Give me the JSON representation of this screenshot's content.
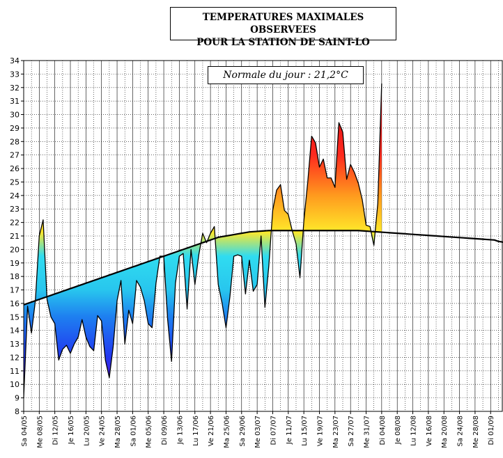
{
  "chart_data": {
    "type": "area",
    "title_line1": "TEMPERATURES MAXIMALES OBSERVEES",
    "title_line2": "POUR LA STATION DE SAINT-LO",
    "annotation": "Normale du jour : 21,2°C",
    "ylim": [
      8,
      34
    ],
    "y_ticks": [
      8,
      9,
      10,
      11,
      12,
      13,
      14,
      15,
      16,
      17,
      18,
      19,
      20,
      21,
      22,
      23,
      24,
      25,
      26,
      27,
      28,
      29,
      30,
      31,
      32,
      33,
      34
    ],
    "x_start_date": "2024-05-04",
    "x_end_date": "2024-09-04",
    "x_tick_labels": [
      "Sa 04/05",
      "Me 08/05",
      "Di 12/05",
      "Je 16/05",
      "Lu 20/05",
      "Ve 24/05",
      "Ma 28/05",
      "Sa 01/06",
      "Me 05/06",
      "Di 09/06",
      "Je 13/06",
      "Lu 17/06",
      "Ve 21/06",
      "Ma 25/06",
      "Sa 29/06",
      "Me 03/07",
      "Di 07/07",
      "Je 11/07",
      "Lu 15/07",
      "Ve 19/07",
      "Ma 23/07",
      "Sa 27/07",
      "Me 31/07",
      "Di 04/08",
      "Je 08/08",
      "Lu 12/08",
      "Ve 16/08",
      "Ma 20/08",
      "Sa 24/08",
      "Me 28/08",
      "Di 01/09"
    ],
    "grid": true,
    "series": [
      {
        "values": [
          9.0,
          15.8,
          13.8,
          16.2,
          21.0,
          22.2,
          16.3,
          15.0,
          14.5,
          11.8,
          12.6,
          12.9,
          12.3,
          13.0,
          13.5,
          14.8,
          13.5,
          12.8,
          12.5,
          15.1,
          14.7,
          11.8,
          10.5,
          12.8,
          16.2,
          17.7,
          13.0,
          15.5,
          14.5,
          17.7,
          17.2,
          16.2,
          14.5,
          14.2,
          17.5,
          19.5,
          19.5,
          14.8,
          11.7,
          17.5,
          19.5,
          19.7,
          15.6,
          20.0,
          17.4,
          19.6,
          21.2,
          20.5,
          21.2,
          21.7,
          17.4,
          16.0,
          14.2,
          16.5,
          19.5,
          19.6,
          19.5,
          16.7,
          19.2,
          16.9,
          17.4,
          21.0,
          15.7,
          18.8,
          22.9,
          24.4,
          24.8,
          22.9,
          22.6,
          21.4,
          20.4,
          17.9,
          22.1,
          25.0,
          28.4,
          27.9,
          26.1,
          26.7,
          25.3,
          25.3,
          24.6,
          29.4,
          28.7,
          25.2,
          26.3,
          25.7,
          24.9,
          23.7,
          21.8,
          21.7,
          20.3,
          23.4,
          32.3
        ]
      },
      {
        "values": [
          15.9,
          16.0,
          16.1,
          16.2,
          16.3,
          16.4,
          16.5,
          16.6,
          16.7,
          16.8,
          16.9,
          17.0,
          17.1,
          17.2,
          17.3,
          17.4,
          17.5,
          17.6,
          17.7,
          17.8,
          17.9,
          18.0,
          18.1,
          18.2,
          18.3,
          18.4,
          18.5,
          18.6,
          18.7,
          18.8,
          18.9,
          19.0,
          19.1,
          19.2,
          19.3,
          19.4,
          19.5,
          19.6,
          19.7,
          19.8,
          19.9,
          20.0,
          20.1,
          20.2,
          20.3,
          20.4,
          20.5,
          20.6,
          20.7,
          20.8,
          20.9,
          20.95,
          21.0,
          21.05,
          21.1,
          21.15,
          21.2,
          21.25,
          21.3,
          21.32,
          21.34,
          21.36,
          21.38,
          21.4,
          21.4,
          21.4,
          21.4,
          21.4,
          21.4,
          21.4,
          21.4,
          21.4,
          21.4,
          21.4,
          21.4,
          21.4,
          21.4,
          21.4,
          21.4,
          21.4,
          21.4,
          21.4,
          21.4,
          21.4,
          21.4,
          21.4,
          21.4,
          21.38,
          21.36,
          21.34,
          21.32,
          21.3,
          21.28,
          21.26,
          21.24,
          21.22,
          21.2,
          21.18,
          21.16,
          21.14,
          21.12,
          21.1,
          21.08,
          21.06,
          21.04,
          21.02,
          21.0,
          20.98,
          20.96,
          20.94,
          20.92,
          20.9,
          20.88,
          20.86,
          20.84,
          20.82,
          20.8,
          20.78,
          20.76,
          20.74,
          20.72,
          20.7,
          20.6,
          20.55,
          20.5,
          20.45,
          20.4,
          20.35,
          20.3
        ]
      }
    ]
  }
}
